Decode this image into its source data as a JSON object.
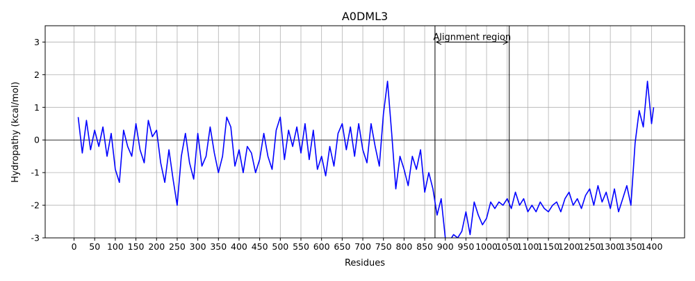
{
  "chart_data": {
    "type": "line",
    "title": "A0DML3",
    "xlabel": "Residues",
    "ylabel": "Hydropathy (kcal/mol)",
    "xlim": [
      -70,
      1480
    ],
    "ylim": [
      -3,
      3.5
    ],
    "xticks": [
      0,
      50,
      100,
      150,
      200,
      250,
      300,
      350,
      400,
      450,
      500,
      550,
      600,
      650,
      700,
      750,
      800,
      850,
      900,
      950,
      1000,
      1050,
      1100,
      1150,
      1200,
      1250,
      1300,
      1350,
      1400
    ],
    "yticks": [
      -3,
      -2,
      -1,
      0,
      1,
      2,
      3
    ],
    "grid": true,
    "series": [
      {
        "color": "#0000ff",
        "x": [
          10,
          20,
          30,
          40,
          50,
          60,
          70,
          80,
          90,
          100,
          110,
          120,
          130,
          140,
          150,
          160,
          170,
          180,
          190,
          200,
          210,
          220,
          230,
          240,
          250,
          260,
          270,
          280,
          290,
          300,
          310,
          320,
          330,
          340,
          350,
          360,
          370,
          380,
          390,
          400,
          410,
          420,
          430,
          440,
          450,
          460,
          470,
          480,
          490,
          500,
          510,
          520,
          530,
          540,
          550,
          560,
          570,
          580,
          590,
          600,
          610,
          620,
          630,
          640,
          650,
          660,
          670,
          680,
          690,
          700,
          710,
          720,
          730,
          740,
          750,
          760,
          770,
          780,
          790,
          800,
          810,
          820,
          830,
          840,
          850,
          860,
          870,
          880,
          890,
          900,
          910,
          920,
          930,
          940,
          950,
          960,
          970,
          980,
          990,
          1000,
          1010,
          1020,
          1030,
          1040,
          1050,
          1060,
          1070,
          1080,
          1090,
          1100,
          1110,
          1120,
          1130,
          1140,
          1150,
          1160,
          1170,
          1180,
          1190,
          1200,
          1210,
          1220,
          1230,
          1240,
          1250,
          1260,
          1270,
          1280,
          1290,
          1300,
          1310,
          1320,
          1330,
          1340,
          1350,
          1360,
          1370,
          1380,
          1390,
          1400,
          1405
        ],
        "y": [
          0.7,
          -0.4,
          0.6,
          -0.3,
          0.3,
          -0.2,
          0.4,
          -0.5,
          0.2,
          -0.9,
          -1.3,
          0.3,
          -0.2,
          -0.5,
          0.5,
          -0.3,
          -0.7,
          0.6,
          0.1,
          0.3,
          -0.7,
          -1.3,
          -0.3,
          -1.2,
          -2.0,
          -0.5,
          0.2,
          -0.7,
          -1.2,
          0.2,
          -0.8,
          -0.5,
          0.4,
          -0.4,
          -1.0,
          -0.5,
          0.7,
          0.4,
          -0.8,
          -0.3,
          -1.0,
          -0.2,
          -0.4,
          -1.0,
          -0.6,
          0.2,
          -0.5,
          -0.9,
          0.3,
          0.7,
          -0.6,
          0.3,
          -0.2,
          0.4,
          -0.4,
          0.5,
          -0.6,
          0.3,
          -0.9,
          -0.5,
          -1.1,
          -0.2,
          -0.8,
          0.2,
          0.5,
          -0.3,
          0.4,
          -0.5,
          0.5,
          -0.3,
          -0.7,
          0.5,
          -0.2,
          -0.8,
          0.8,
          1.8,
          0.2,
          -1.5,
          -0.5,
          -0.9,
          -1.4,
          -0.5,
          -0.9,
          -0.3,
          -1.6,
          -1.0,
          -1.5,
          -2.3,
          -1.8,
          -3.0,
          -3.1,
          -2.9,
          -3.0,
          -2.8,
          -2.2,
          -2.9,
          -1.9,
          -2.3,
          -2.6,
          -2.4,
          -1.9,
          -2.1,
          -1.9,
          -2.0,
          -1.8,
          -2.1,
          -1.6,
          -2.0,
          -1.8,
          -2.2,
          -2.0,
          -2.2,
          -1.9,
          -2.1,
          -2.2,
          -2.0,
          -1.9,
          -2.2,
          -1.8,
          -1.6,
          -2.0,
          -1.8,
          -2.1,
          -1.7,
          -1.5,
          -2.0,
          -1.4,
          -1.9,
          -1.6,
          -2.1,
          -1.5,
          -2.2,
          -1.8,
          -1.4,
          -2.0,
          -0.1,
          0.9,
          0.4,
          1.8,
          0.5,
          1.0
        ]
      }
    ],
    "annotation": {
      "text": "Alignment region",
      "x_start": 875,
      "x_end": 1055,
      "y": 3
    }
  }
}
